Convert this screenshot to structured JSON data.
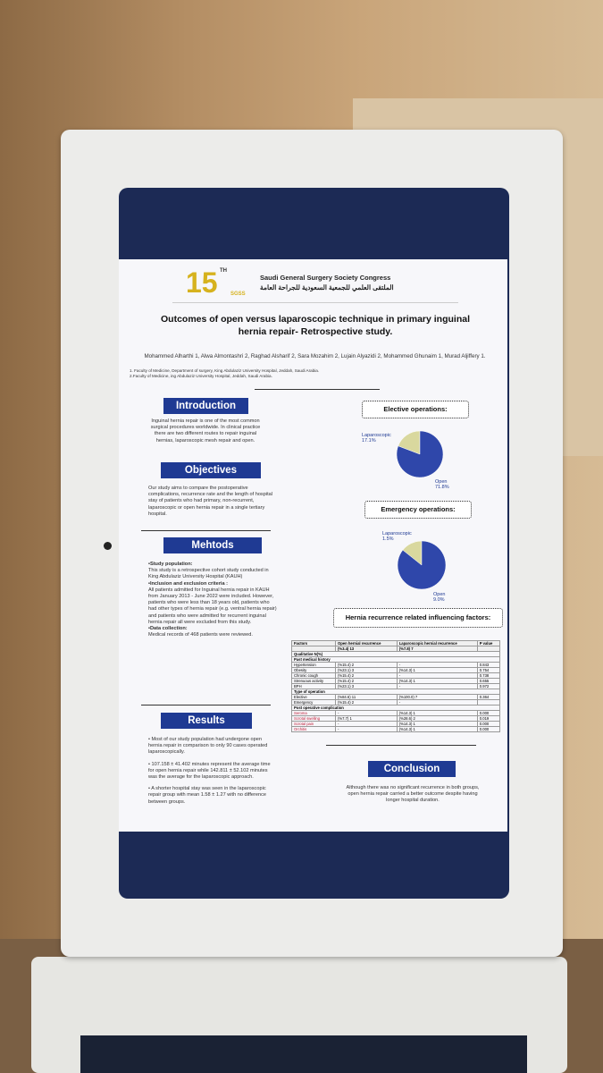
{
  "header": {
    "logo_number": "15",
    "logo_sup": "TH",
    "logo_abbr": "SGSS",
    "congress_name": "Saudi General Surgery Society Congress",
    "congress_name_ar": "الملتقى العلمي للجمعية السعودية للجراحة العامة"
  },
  "title": "Outcomes of open versus laparoscopic technique in primary inguinal hernia repair- Retrospective study.",
  "authors": "Mohammed Alharthi 1, Alwa Almontashri 2, Raghad Alsharif 2, Sara Mozahim 2, Lujain Alyazidi 2, Mohammed Ghunaim 1, Murad Aljiffery 1.",
  "affiliations": [
    "1. Faculty of Medicine, Department of surgery, King Abdulaziz University Hospital, Jeddah, Saudi Arabia.",
    "2.Faculty of Medicine, ing Abdulaziz University Hospital, Jeddah, Saudi Arabia."
  ],
  "introduction": {
    "heading": "Introduction",
    "text": "Inguinal hernia repair is one of the most common surgical procedures worldwide. In clinical practice there are two different routes to repair inguinal hernias, laparoscopic mesh repair and open."
  },
  "objectives": {
    "heading": "Objectives",
    "text": "Our study aims to compare the postoperative complications, recurrence rate and the length of hospital stay of patients who had primary, non-recurrent, laparoscopic or open hernia repair in a single tertiary hospital."
  },
  "methods": {
    "heading": "Mehtods",
    "items": [
      {
        "label": "•Study population:",
        "text": "This study is a retrospective cohort study conducted in King Abdulaziz University Hospital (KAUH)"
      },
      {
        "label": "•Inclusion and exclusion criteria :",
        "text": "All patients admitted for Inguinal hernia repair in KAUH from January 2013 - June 2022 were included. However, patients who were less than 18 years old, patients who had other types of hernia repair (e.g. ventral hernia repair) and patients who were admitted for recurrent inguinal hernia repair all were excluded from this study."
      },
      {
        "label": "•Data collection:",
        "text": "Medical records of 468 patients were reviewed."
      }
    ]
  },
  "results": {
    "heading": "Results",
    "paragraphs": [
      "• Most of our study population had undergone open hernia repair in comparison to only 90 cases operated laparoscopically.",
      "• 107.158 ± 41.402 minutes represent the average time for open hernia repair while 142.811 ± 52.102 minutes was the average for the laparoscopic approach.",
      "• A shorter hospital stay was seen in the laparoscopic repair group with mean 1.58 ± 1.27 with no difference between groups."
    ]
  },
  "chart_data": [
    {
      "type": "pie",
      "title": "Elective operations:",
      "categories": [
        "Laparoscopic",
        "Open"
      ],
      "values": [
        17.1,
        71.8
      ],
      "value_labels": [
        "17.1%",
        "71.8%"
      ],
      "colors": [
        "#d9d89e",
        "#2f47aa"
      ]
    },
    {
      "type": "pie",
      "title": "Emergency operations:",
      "categories": [
        "Laparoscopic",
        "Open"
      ],
      "values": [
        1.5,
        9.0
      ],
      "value_labels": [
        "1.5%",
        "9.0%"
      ],
      "colors": [
        "#d9d89e",
        "#2f47aa"
      ]
    }
  ],
  "recurrence_table": {
    "heading": "Hernia recurrence related influencing factors:",
    "columns": [
      "Factors",
      "Open hernial recurrence",
      "Laparoscopic hernial recurrence",
      "P value"
    ],
    "subheader": [
      "(%3.4) 13",
      "(%7.8) 7"
    ],
    "rows": [
      {
        "section": "Qualitative N(%)"
      },
      {
        "section": "Past medical history"
      },
      {
        "cells": [
          "Hypertension",
          "(%15.4) 2",
          "-",
          "0.843"
        ]
      },
      {
        "cells": [
          "Obesity",
          "(%23.1) 3",
          "(%14.3) 1",
          "0.754"
        ]
      },
      {
        "cells": [
          "Chronic cough",
          "(%15.4) 2",
          "-",
          "0.738"
        ]
      },
      {
        "cells": [
          "Strenuous activity",
          "(%15.4) 2",
          "(%14.3) 1",
          "0.655"
        ]
      },
      {
        "cells": [
          "BPH",
          "(%23.1) 3",
          "-",
          "0.972"
        ]
      },
      {
        "section": "Type of operation"
      },
      {
        "cells": [
          "Elective",
          "(%84.6) 11",
          "(%100.0) 7",
          "0.364"
        ]
      },
      {
        "cells": [
          "Emergency",
          "(%15.4) 2",
          "-"
        ]
      },
      {
        "section": "Post operative complication"
      },
      {
        "cells": [
          "Seroma",
          "-",
          "(%14.3) 1",
          "0.000"
        ]
      },
      {
        "cells": [
          "Scrotal swelling",
          "(%7.7) 1",
          "(%28.6) 2",
          "0.019"
        ]
      },
      {
        "cells": [
          "Scrotal pain",
          "-",
          "(%14.3) 1",
          "0.000"
        ]
      },
      {
        "cells": [
          "Orchitis",
          "-",
          "(%14.3) 1",
          "0.000"
        ]
      }
    ]
  },
  "conclusion": {
    "heading": "Conclusion",
    "text": "Although there was no significant recurrence in both groups, open hernia repair carried a better outcome despite having longer hospital duration."
  }
}
